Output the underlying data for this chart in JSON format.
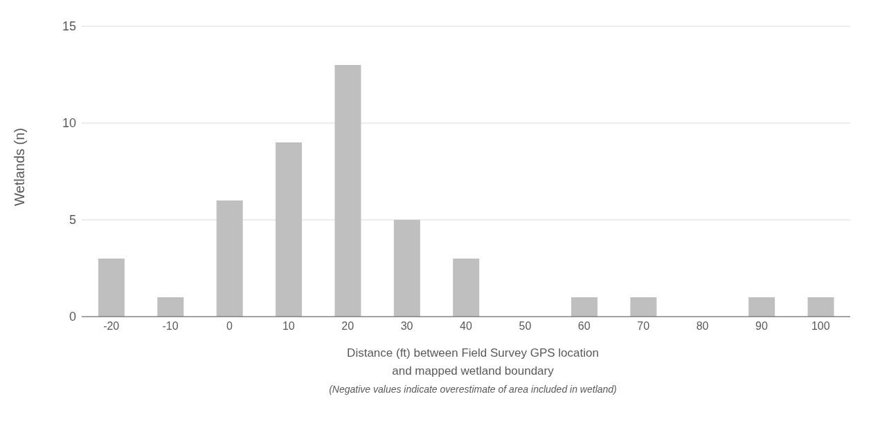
{
  "chart_data": {
    "type": "bar",
    "xlabel": "Distance (ft) between Field Survey GPS location\nand mapped wetland boundary",
    "ylabel": "Wetlands (n)",
    "annotations": [
      "(Negative values indicate overestimate of area included in wetland)"
    ],
    "categories": [
      "-20",
      "-10",
      "0",
      "10",
      "20",
      "30",
      "40",
      "50",
      "60",
      "70",
      "80",
      "90",
      "100"
    ],
    "values": [
      3,
      1,
      6,
      9,
      13,
      5,
      3,
      0,
      1,
      1,
      0,
      1,
      1
    ],
    "color": "#bfbfbf",
    "ylim": [
      0,
      15
    ],
    "yticks": [
      0,
      5,
      10,
      15
    ],
    "grid": "y"
  }
}
